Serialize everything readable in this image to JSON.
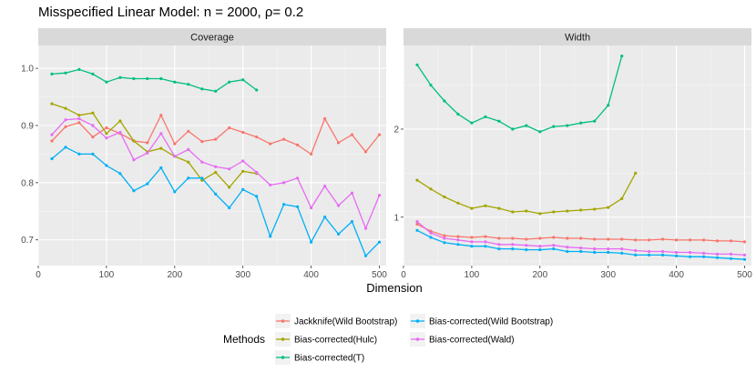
{
  "chart_data": {
    "type": "line",
    "title": "Misspecified Linear Model: n = 2000, ρ= 0.2",
    "xlabel": "Dimension",
    "legend_title": "Methods",
    "x": [
      20,
      40,
      60,
      80,
      100,
      120,
      140,
      160,
      180,
      200,
      220,
      240,
      260,
      280,
      300,
      320,
      340,
      360,
      380,
      400,
      420,
      440,
      460,
      480,
      500
    ],
    "series_colors": {
      "Jackknife(Wild Bootstrap)": "#F8766D",
      "Bias-corrected(Hulc)": "#A3A500",
      "Bias-corrected(T)": "#00BF7D",
      "Bias-corrected(Wild Bootstrap)": "#00B0F6",
      "Bias-corrected(Wald)": "#E76BF3"
    },
    "legend_order": [
      "Jackknife(Wild Bootstrap)",
      "Bias-corrected(Wild Bootstrap)",
      "Bias-corrected(Hulc)",
      "Bias-corrected(Wald)",
      "Bias-corrected(T)"
    ],
    "panels": [
      {
        "name": "Coverage",
        "xlim": [
          0,
          510
        ],
        "ylim": [
          0.655,
          1.04
        ],
        "xticks": [
          0,
          100,
          200,
          300,
          400,
          500
        ],
        "yticks": [
          0.7,
          0.8,
          0.9,
          1.0
        ],
        "ytick_labels": [
          "0.7",
          "0.8",
          "0.9",
          "1.0"
        ],
        "series": [
          {
            "name": "Jackknife(Wild Bootstrap)",
            "values": [
              0.873,
              0.898,
              0.905,
              0.88,
              0.896,
              0.886,
              0.873,
              0.87,
              0.918,
              0.868,
              0.89,
              0.872,
              0.876,
              0.896,
              0.888,
              0.88,
              0.868,
              0.876,
              0.866,
              0.85,
              0.912,
              0.87,
              0.884,
              0.854,
              0.884
            ]
          },
          {
            "name": "Bias-corrected(Hulc)",
            "values": [
              0.938,
              0.93,
              0.918,
              0.922,
              0.886,
              0.908,
              0.873,
              0.854,
              0.86,
              0.846,
              0.836,
              0.804,
              0.818,
              0.792,
              0.82,
              0.816,
              null,
              null,
              null,
              null,
              null,
              null,
              null,
              null,
              null
            ]
          },
          {
            "name": "Bias-corrected(T)",
            "values": [
              0.99,
              0.992,
              0.998,
              0.99,
              0.976,
              0.984,
              0.982,
              0.982,
              0.982,
              0.976,
              0.972,
              0.964,
              0.96,
              0.976,
              0.98,
              0.962,
              null,
              null,
              null,
              null,
              null,
              null,
              null,
              null,
              null
            ]
          },
          {
            "name": "Bias-corrected(Wild Bootstrap)",
            "values": [
              0.842,
              0.862,
              0.85,
              0.85,
              0.83,
              0.816,
              0.786,
              0.798,
              0.826,
              0.784,
              0.808,
              0.808,
              0.78,
              0.756,
              0.788,
              0.776,
              0.706,
              0.762,
              0.758,
              0.696,
              0.74,
              0.71,
              0.732,
              0.672,
              0.696
            ]
          },
          {
            "name": "Bias-corrected(Wald)",
            "values": [
              0.884,
              0.91,
              0.912,
              0.9,
              0.878,
              0.888,
              0.84,
              0.852,
              0.886,
              0.846,
              0.858,
              0.836,
              0.828,
              0.824,
              0.838,
              0.818,
              0.796,
              0.8,
              0.808,
              0.756,
              0.794,
              0.76,
              0.782,
              0.72,
              0.778
            ]
          }
        ]
      },
      {
        "name": "Width",
        "xlim": [
          0,
          510
        ],
        "ylim": [
          0.45,
          2.95
        ],
        "xticks": [
          0,
          100,
          200,
          300,
          400,
          500
        ],
        "yticks": [
          1,
          2
        ],
        "ytick_labels": [
          "1",
          "2"
        ],
        "series": [
          {
            "name": "Jackknife(Wild Bootstrap)",
            "values": [
              0.92,
              0.84,
              0.79,
              0.78,
              0.77,
              0.78,
              0.76,
              0.76,
              0.75,
              0.76,
              0.77,
              0.76,
              0.76,
              0.75,
              0.75,
              0.75,
              0.74,
              0.74,
              0.75,
              0.74,
              0.74,
              0.74,
              0.73,
              0.73,
              0.72
            ]
          },
          {
            "name": "Bias-corrected(Hulc)",
            "values": [
              1.42,
              1.32,
              1.23,
              1.16,
              1.1,
              1.13,
              1.1,
              1.06,
              1.07,
              1.04,
              1.06,
              1.07,
              1.08,
              1.09,
              1.11,
              1.21,
              1.5
            ]
          },
          {
            "name": "Bias-corrected(T)",
            "values": [
              2.73,
              2.5,
              2.32,
              2.17,
              2.07,
              2.14,
              2.09,
              2.0,
              2.04,
              1.97,
              2.03,
              2.04,
              2.07,
              2.09,
              2.27,
              2.83
            ]
          },
          {
            "name": "Bias-corrected(Wild Bootstrap)",
            "values": [
              0.85,
              0.77,
              0.71,
              0.69,
              0.67,
              0.67,
              0.64,
              0.64,
              0.63,
              0.63,
              0.64,
              0.61,
              0.61,
              0.6,
              0.6,
              0.59,
              0.57,
              0.57,
              0.57,
              0.56,
              0.55,
              0.55,
              0.54,
              0.53,
              0.52
            ]
          },
          {
            "name": "Bias-corrected(Wald)",
            "values": [
              0.95,
              0.82,
              0.76,
              0.74,
              0.72,
              0.72,
              0.69,
              0.69,
              0.68,
              0.67,
              0.68,
              0.66,
              0.65,
              0.64,
              0.64,
              0.64,
              0.62,
              0.61,
              0.61,
              0.6,
              0.6,
              0.59,
              0.58,
              0.58,
              0.57
            ]
          }
        ]
      }
    ]
  }
}
